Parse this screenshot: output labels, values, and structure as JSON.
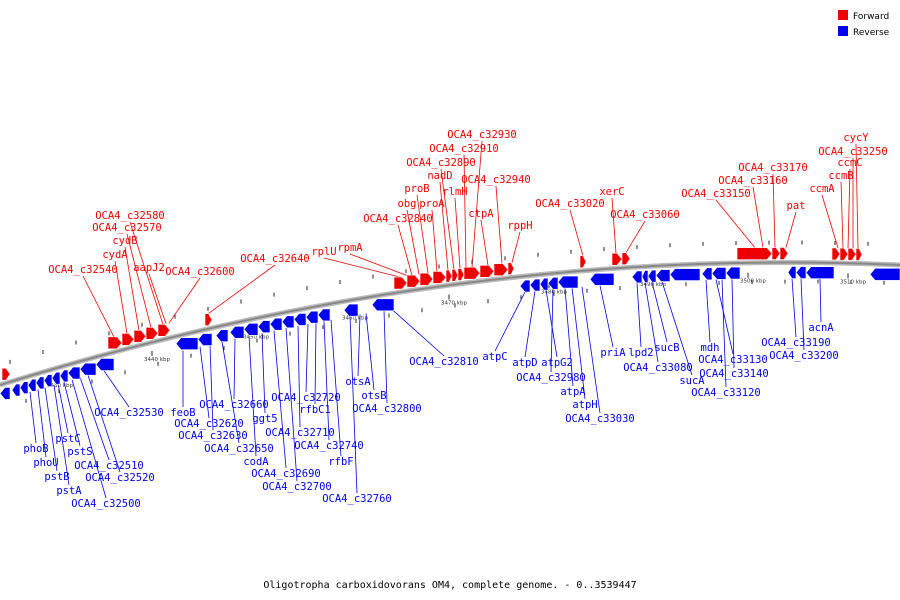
{
  "caption": "Oligotropha carboxidovorans OM4, complete genome. - 0..3539447",
  "legend": [
    {
      "label": "Forward",
      "color": "#ee0000"
    },
    {
      "label": "Reverse",
      "color": "#0000ee"
    }
  ],
  "colors": {
    "forward": "#ee0000",
    "reverse": "#0000ee",
    "backbone": "#888888"
  },
  "ticks": [
    "3430 kbp",
    "3440 kbp",
    "3450 kbp",
    "3460 kbp",
    "3470 kbp",
    "3480 kbp",
    "3490 kbp",
    "3500 kbp",
    "3510 kbp"
  ],
  "forward_genes": [
    "OCA4_c32540",
    "cydA",
    "cydB",
    "OCA4_c32570",
    "OCA4_c32580",
    "aapJ2",
    "OCA4_c32600",
    "OCA4_c32640",
    "rplU",
    "rpmA",
    "OCA4_c32840",
    "obg",
    "proB",
    "proA",
    "nadD",
    "OCA4_c32890",
    "rlmH",
    "OCA4_c32910",
    "OCA4_c32930",
    "ctpA",
    "OCA4_c32940",
    "rppH",
    "OCA4_c33020",
    "xerC",
    "OCA4_c33060",
    "OCA4_c33150",
    "OCA4_c33160",
    "OCA4_c33170",
    "pat",
    "ccmA",
    "ccmB",
    "ccmC",
    "OCA4_c33250",
    "cycY"
  ],
  "reverse_genes": [
    "phoB",
    "phoU",
    "pstB",
    "pstA",
    "pstC",
    "pstS",
    "OCA4_c32500",
    "OCA4_c32510",
    "OCA4_c32520",
    "OCA4_c32530",
    "feoB",
    "OCA4_c32620",
    "OCA4_c32630",
    "OCA4_c32650",
    "OCA4_c32660",
    "codA",
    "ggt5",
    "OCA4_c32690",
    "OCA4_c32700",
    "OCA4_c32710",
    "OCA4_c32720",
    "rfbC1",
    "OCA4_c32740",
    "rfbF",
    "OCA4_c32760",
    "otsA",
    "otsB",
    "OCA4_c32800",
    "OCA4_c32810",
    "atpC",
    "atpD",
    "atpG2",
    "OCA4_c32980",
    "atpA",
    "atpH",
    "OCA4_c33030",
    "priA",
    "lpd2",
    "OCA4_c33080",
    "sucB",
    "sucA",
    "mdh",
    "OCA4_c33120",
    "OCA4_c33130",
    "OCA4_c33140",
    "OCA4_c33190",
    "OCA4_c33200",
    "acnA"
  ]
}
